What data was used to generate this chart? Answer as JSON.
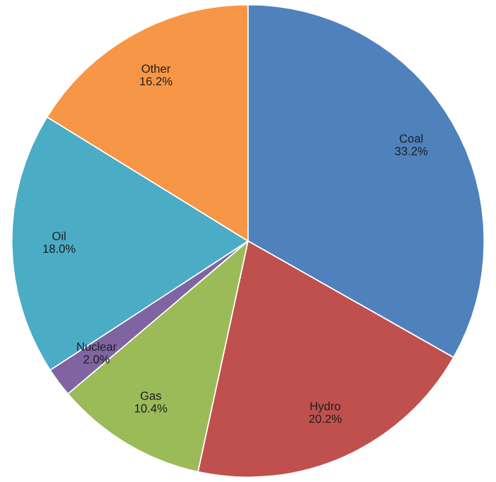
{
  "chart_data": {
    "type": "pie",
    "categories": [
      "Coal",
      "Hydro",
      "Gas",
      "Nuclear",
      "Oil",
      "Other"
    ],
    "values": [
      33.2,
      20.2,
      10.4,
      2.0,
      18.0,
      16.2
    ],
    "colors": [
      "#4f81bd",
      "#c0504d",
      "#9bbb59",
      "#8064a2",
      "#4bacc6",
      "#f79646"
    ],
    "value_labels": [
      "33.2%",
      "20.2%",
      "10.4%",
      "2.0%",
      "18.0%",
      "16.2%"
    ]
  }
}
